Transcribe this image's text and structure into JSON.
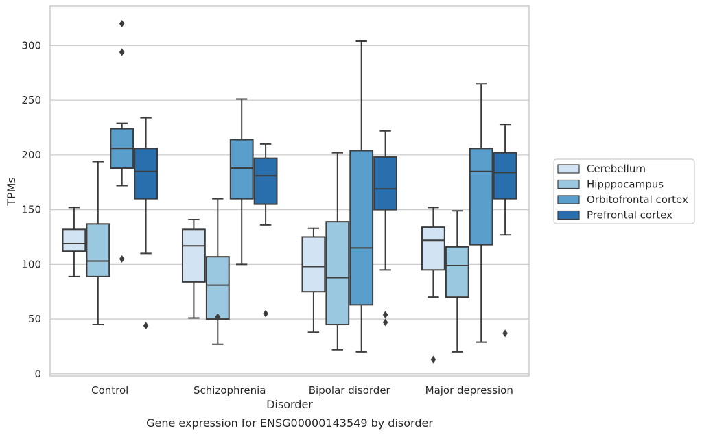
{
  "chart_data": {
    "type": "box",
    "title": "",
    "caption": "Gene expression for ENSG00000143549 by disorder",
    "xlabel": "Disorder",
    "ylabel": "TPMs",
    "ylim": [
      -2,
      336
    ],
    "yticks": [
      0,
      50,
      100,
      150,
      200,
      250,
      300
    ],
    "grid": "horizontal",
    "legend_position": "right",
    "categories": [
      "Control",
      "Schizophrenia",
      "Bipolar disorder",
      "Major depression"
    ],
    "series": [
      {
        "name": "Cerebellum",
        "color": "#d2e3f3",
        "boxes": [
          {
            "whisker_low": 89,
            "q1": 112,
            "median": 119,
            "q3": 132,
            "whisker_high": 152,
            "outliers": []
          },
          {
            "whisker_low": 51,
            "q1": 84,
            "median": 117,
            "q3": 132,
            "whisker_high": 141,
            "outliers": []
          },
          {
            "whisker_low": 38,
            "q1": 75,
            "median": 98,
            "q3": 125,
            "whisker_high": 133,
            "outliers": []
          },
          {
            "whisker_low": 70,
            "q1": 95,
            "median": 122,
            "q3": 134,
            "whisker_high": 152,
            "outliers": [
              13
            ]
          }
        ]
      },
      {
        "name": "Hipppocampus",
        "color": "#9ac8e0",
        "boxes": [
          {
            "whisker_low": 45,
            "q1": 89,
            "median": 103,
            "q3": 137,
            "whisker_high": 194,
            "outliers": []
          },
          {
            "whisker_low": 27,
            "q1": 50,
            "median": 81,
            "q3": 107,
            "whisker_high": 160,
            "outliers": [
              52
            ]
          },
          {
            "whisker_low": 22,
            "q1": 45,
            "median": 88,
            "q3": 139,
            "whisker_high": 202,
            "outliers": []
          },
          {
            "whisker_low": 20,
            "q1": 70,
            "median": 99,
            "q3": 116,
            "whisker_high": 149,
            "outliers": []
          }
        ]
      },
      {
        "name": "Orbitofrontal cortex",
        "color": "#5a9ecc",
        "boxes": [
          {
            "whisker_low": 172,
            "q1": 188,
            "median": 206,
            "q3": 224,
            "whisker_high": 229,
            "outliers": [
              320,
              294,
              105
            ]
          },
          {
            "whisker_low": 100,
            "q1": 160,
            "median": 188,
            "q3": 214,
            "whisker_high": 251,
            "outliers": []
          },
          {
            "whisker_low": 20,
            "q1": 63,
            "median": 115,
            "q3": 204,
            "whisker_high": 304,
            "outliers": []
          },
          {
            "whisker_low": 29,
            "q1": 118,
            "median": 185,
            "q3": 206,
            "whisker_high": 265,
            "outliers": []
          }
        ]
      },
      {
        "name": "Prefrontal cortex",
        "color": "#2a6fad",
        "boxes": [
          {
            "whisker_low": 110,
            "q1": 160,
            "median": 185,
            "q3": 206,
            "whisker_high": 234,
            "outliers": [
              44
            ]
          },
          {
            "whisker_low": 136,
            "q1": 155,
            "median": 181,
            "q3": 197,
            "whisker_high": 210,
            "outliers": [
              55
            ]
          },
          {
            "whisker_low": 95,
            "q1": 150,
            "median": 169,
            "q3": 198,
            "whisker_high": 222,
            "outliers": [
              54,
              47
            ]
          },
          {
            "whisker_low": 127,
            "q1": 160,
            "median": 184,
            "q3": 202,
            "whisker_high": 228,
            "outliers": [
              37
            ]
          }
        ]
      }
    ]
  }
}
